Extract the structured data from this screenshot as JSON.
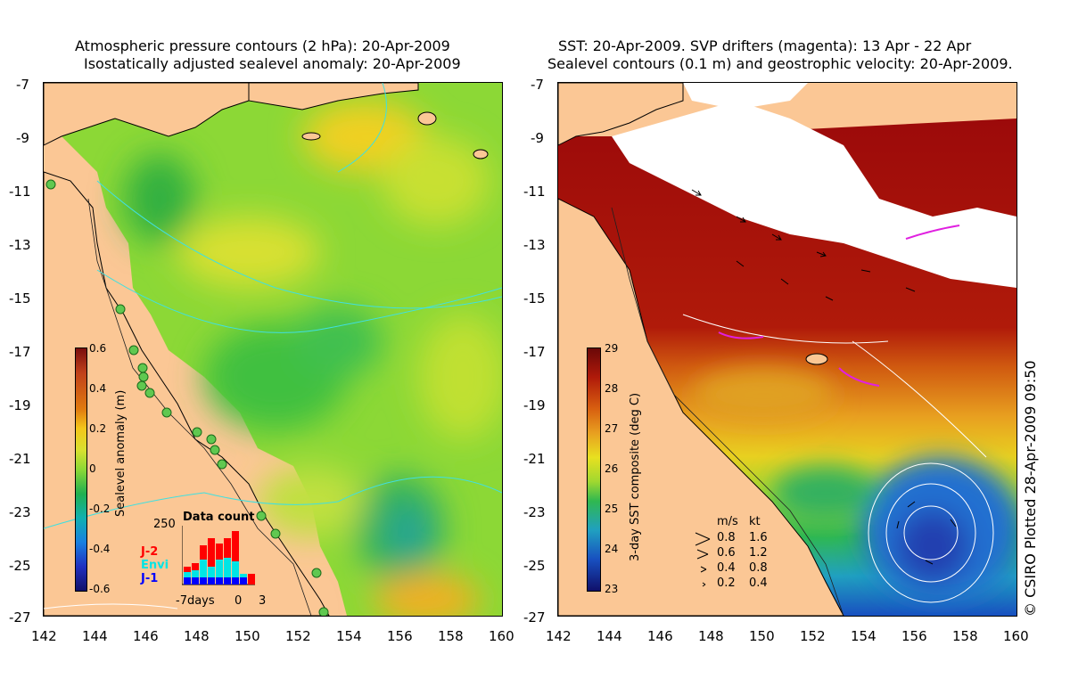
{
  "left_panel": {
    "title_line1": "Atmospheric pressure contours (2 hPa): 20-Apr-2009",
    "title_line2": "Isostatically adjusted sealevel anomaly: 20-Apr-2009",
    "colorbar_label": "Sealevel anomaly (m)",
    "colorbar_ticks": [
      "0.6",
      "0.4",
      "0.2",
      "0",
      "-0.2",
      "-0.4",
      "-0.6"
    ],
    "data_count": {
      "title": "Data count",
      "ymax_label": "250",
      "legend": [
        {
          "name": "J-2",
          "color": "#ff0000"
        },
        {
          "name": "Envi",
          "color": "#00e5e5"
        },
        {
          "name": "J-1",
          "color": "#0000ff"
        }
      ],
      "x_labels": [
        "-7days",
        "0",
        "3"
      ]
    }
  },
  "right_panel": {
    "title_line1": "SST: 20-Apr-2009. SVP drifters (magenta): 13 Apr - 22 Apr",
    "title_line2": "Sealevel contours (0.1 m) and geostrophic velocity: 20-Apr-2009.",
    "colorbar_label": "3-day SST composite (deg C)",
    "colorbar_ticks": [
      "29",
      "28",
      "27",
      "26",
      "25",
      "24",
      "23"
    ],
    "velocity_legend": {
      "header_ms": "m/s",
      "header_kt": "kt",
      "rows": [
        {
          "ms": "0.8",
          "kt": "1.6"
        },
        {
          "ms": "0.6",
          "kt": "1.2"
        },
        {
          "ms": "0.4",
          "kt": "0.8"
        },
        {
          "ms": "0.2",
          "kt": "0.4"
        }
      ]
    }
  },
  "axes": {
    "lat_ticks": [
      "-7",
      "-9",
      "-11",
      "-13",
      "-15",
      "-17",
      "-19",
      "-21",
      "-23",
      "-25",
      "-27"
    ],
    "lon_ticks": [
      "142",
      "144",
      "146",
      "148",
      "150",
      "152",
      "154",
      "156",
      "158",
      "160"
    ]
  },
  "copyright": "© CSIRO Plotted 28-Apr-2009 09:50",
  "colors": {
    "land": "#fbc795",
    "cloud": "#ffffff",
    "contour_cyan": "#40e0e0",
    "drifter_magenta": "#e020e0"
  }
}
